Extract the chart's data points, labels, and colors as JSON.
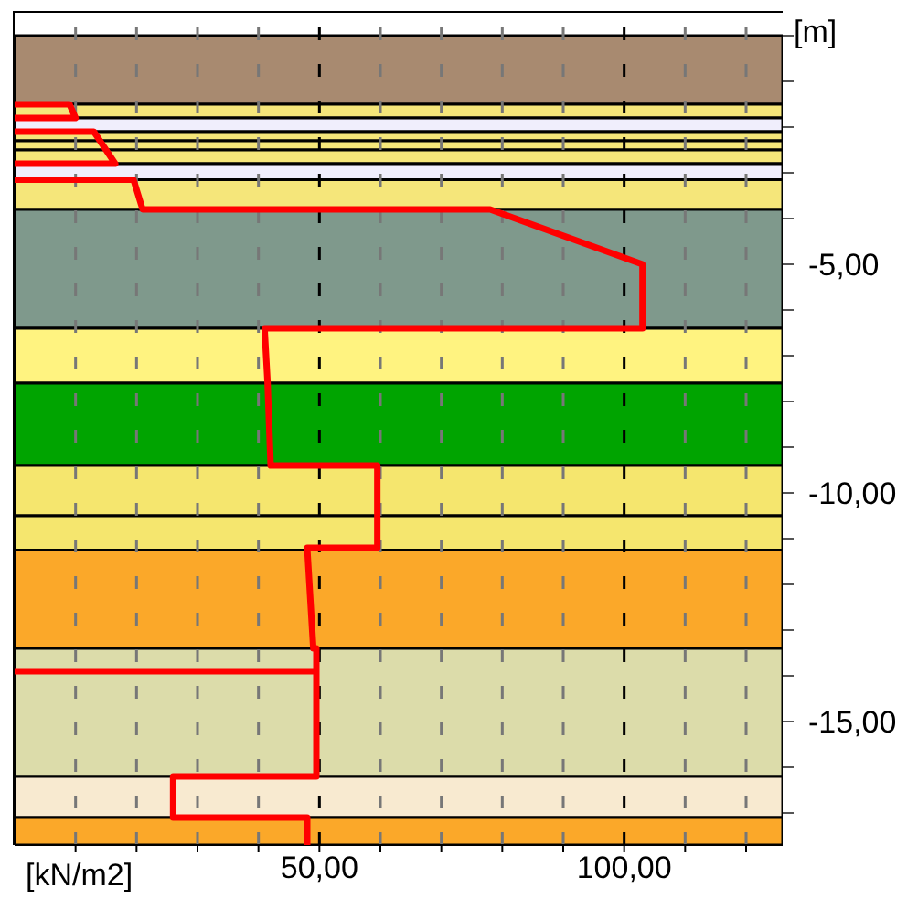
{
  "chart_data": {
    "type": "line",
    "xlabel": "[kN/m2]",
    "ylabel": "[m]",
    "series": [
      {
        "color": "#ff0000",
        "x": [
          0,
          9,
          10,
          0
        ],
        "values": [
          -1.5,
          -1.5,
          -1.8,
          -1.8
        ]
      },
      {
        "color": "#ff0000",
        "x": [
          0,
          13,
          16.5,
          0
        ],
        "values": [
          -2.1,
          -2.1,
          -2.8,
          -2.8
        ]
      },
      {
        "color": "#ff0000",
        "x": [
          0,
          19.5,
          21,
          78,
          103,
          103,
          41,
          41.5,
          42,
          59.5,
          59.5,
          48,
          49,
          49.5,
          49.5,
          26,
          26,
          48,
          48
        ],
        "values": [
          -3.15,
          -3.15,
          -3.8,
          -3.8,
          -5,
          -6.4,
          -6.4,
          -7.6,
          -9.4,
          -9.4,
          -11.2,
          -11.2,
          -13.4,
          -13.4,
          -16.2,
          -16.2,
          -17.1,
          -17.1,
          -17.7
        ]
      },
      {
        "color": "#ff0000",
        "x": [
          0,
          49.5
        ],
        "values": [
          -13.9,
          -13.9
        ]
      }
    ],
    "bands": [
      {
        "axis": "y",
        "from": 0,
        "to": -1.5,
        "color": "#a88a70"
      },
      {
        "axis": "y",
        "from": -1.5,
        "to": -1.8,
        "color": "#f5e67a"
      },
      {
        "axis": "y",
        "from": -1.8,
        "to": -2.1,
        "color": "#f0eefc"
      },
      {
        "axis": "y",
        "from": -2.1,
        "to": -2.3,
        "color": "#f5e67a"
      },
      {
        "axis": "y",
        "from": -2.3,
        "to": -2.5,
        "color": "#f5e67a"
      },
      {
        "axis": "y",
        "from": -2.5,
        "to": -2.8,
        "color": "#f5e67a"
      },
      {
        "axis": "y",
        "from": -2.8,
        "to": -3.15,
        "color": "#f0eefc"
      },
      {
        "axis": "y",
        "from": -3.15,
        "to": -3.8,
        "color": "#f5e67a"
      },
      {
        "axis": "y",
        "from": -3.8,
        "to": -6.4,
        "color": "#7f998c"
      },
      {
        "axis": "y",
        "from": -6.4,
        "to": -7.6,
        "color": "#fff380"
      },
      {
        "axis": "y",
        "from": -7.6,
        "to": -9.4,
        "color": "#00a400"
      },
      {
        "axis": "y",
        "from": -9.4,
        "to": -10.5,
        "color": "#f5e66e"
      },
      {
        "axis": "y",
        "from": -10.5,
        "to": -11.25,
        "color": "#f5e66e"
      },
      {
        "axis": "y",
        "from": -11.25,
        "to": -13.4,
        "color": "#fba829"
      },
      {
        "axis": "y",
        "from": -13.4,
        "to": -16.2,
        "color": "#dcdcaa"
      },
      {
        "axis": "y",
        "from": -16.2,
        "to": -17.1,
        "color": "#f8ead0"
      },
      {
        "axis": "y",
        "from": -17.1,
        "to": -17.7,
        "color": "#fba829"
      }
    ],
    "xlim": [
      0,
      126
    ],
    "xticks": [
      {
        "value": 10,
        "label": null
      },
      {
        "value": 20,
        "label": null
      },
      {
        "value": 30,
        "label": null
      },
      {
        "value": 40,
        "label": null
      },
      {
        "value": 50,
        "label": "50,00"
      },
      {
        "value": 60,
        "label": null
      },
      {
        "value": 70,
        "label": null
      },
      {
        "value": 80,
        "label": null
      },
      {
        "value": 90,
        "label": null
      },
      {
        "value": 100,
        "label": "100,00"
      },
      {
        "value": 110,
        "label": null
      },
      {
        "value": 120,
        "label": null
      }
    ],
    "ylim": [
      -17.7,
      0.5
    ],
    "yticks": [
      {
        "value": 0,
        "label": null
      },
      {
        "value": -1,
        "label": null
      },
      {
        "value": -2,
        "label": null
      },
      {
        "value": -3,
        "label": null
      },
      {
        "value": -4,
        "label": null
      },
      {
        "value": -5,
        "label": "-5,00"
      },
      {
        "value": -6,
        "label": null
      },
      {
        "value": -7,
        "label": null
      },
      {
        "value": -8,
        "label": null
      },
      {
        "value": -9,
        "label": null
      },
      {
        "value": -10,
        "label": "-10,00"
      },
      {
        "value": -11,
        "label": null
      },
      {
        "value": -12,
        "label": null
      },
      {
        "value": -13,
        "label": null
      },
      {
        "value": -14,
        "label": null
      },
      {
        "value": -15,
        "label": "-15,00"
      },
      {
        "value": -16,
        "label": null
      },
      {
        "value": -17,
        "label": null
      }
    ],
    "grid": "x",
    "marker": "none",
    "line_style": "solid"
  }
}
